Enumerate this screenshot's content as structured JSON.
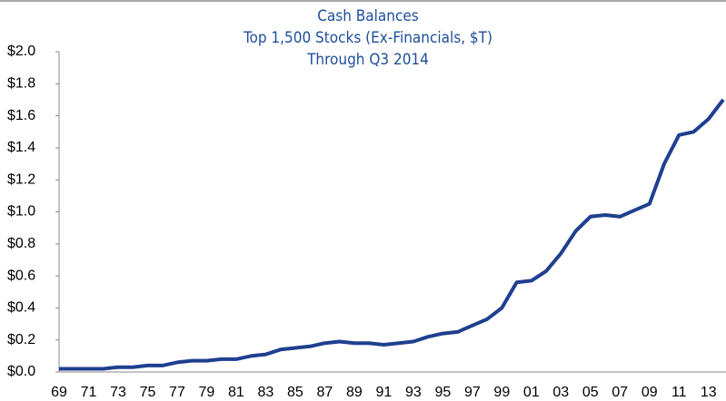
{
  "chart_data": {
    "type": "line",
    "title": "Cash Balances",
    "subtitle": [
      "Top 1,500 Stocks (Ex-Financials, $T)",
      "Through Q3 2014"
    ],
    "categories": [
      "69",
      null,
      "71",
      null,
      "73",
      null,
      "75",
      null,
      "77",
      null,
      "79",
      null,
      "81",
      null,
      "83",
      null,
      "85",
      null,
      "87",
      null,
      "89",
      null,
      "91",
      null,
      "93",
      null,
      "95",
      null,
      "97",
      null,
      "99",
      null,
      "01",
      null,
      "03",
      null,
      "05",
      null,
      "07",
      null,
      "09",
      null,
      "11",
      null,
      "13",
      null
    ],
    "series": [
      {
        "name": "Cash Balances",
        "color": "#1f3f8f",
        "values": [
          0.02,
          0.02,
          0.02,
          0.02,
          0.03,
          0.03,
          0.04,
          0.04,
          0.06,
          0.07,
          0.07,
          0.08,
          0.08,
          0.1,
          0.11,
          0.14,
          0.15,
          0.16,
          0.18,
          0.19,
          0.18,
          0.18,
          0.17,
          0.18,
          0.19,
          0.22,
          0.24,
          0.25,
          0.29,
          0.33,
          0.4,
          0.56,
          0.57,
          0.63,
          0.74,
          0.88,
          0.97,
          0.98,
          0.97,
          1.01,
          1.05,
          1.3,
          1.48,
          1.5,
          1.58,
          1.7
        ]
      }
    ],
    "ylim": [
      0,
      2
    ],
    "yticks": [
      {
        "value": 0,
        "label": "$0.0"
      },
      {
        "value": 0.2,
        "label": "$0.2"
      },
      {
        "value": 0.4,
        "label": "$0.4"
      },
      {
        "value": 0.6,
        "label": "$0.6"
      },
      {
        "value": 0.8,
        "label": "$0.8"
      },
      {
        "value": 1,
        "label": "$1.0"
      },
      {
        "value": 1.2,
        "label": "$1.2"
      },
      {
        "value": 1.4,
        "label": "$1.4"
      },
      {
        "value": 1.6,
        "label": "$1.6"
      },
      {
        "value": 1.8,
        "label": "$1.8"
      },
      {
        "value": 2,
        "label": "$2.0"
      }
    ],
    "grid": false
  }
}
